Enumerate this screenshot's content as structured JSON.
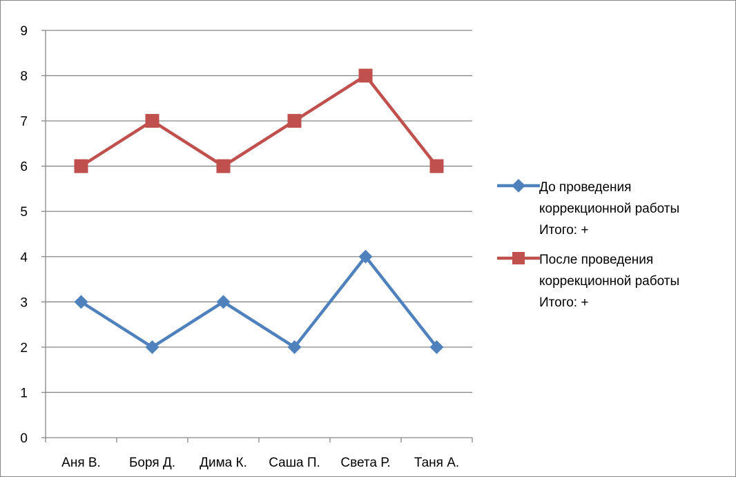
{
  "chart_data": {
    "type": "line",
    "categories": [
      "Аня В.",
      "Боря Д.",
      "Дима К.",
      "Саша П.",
      "Света Р.",
      "Таня А."
    ],
    "ylim": [
      0,
      9
    ],
    "yticks": [
      0,
      1,
      2,
      3,
      4,
      5,
      6,
      7,
      8,
      9
    ],
    "grid": true,
    "legend_position": "right",
    "series": [
      {
        "name": "До проведения коррекционной работы Итого: +",
        "legend_lines": [
          "До проведения",
          "коррекционной работы",
          "Итого: +"
        ],
        "color": "#4F81BD",
        "marker": "diamond",
        "values": [
          3,
          2,
          3,
          2,
          4,
          2
        ]
      },
      {
        "name": "После проведения коррекционной работы Итого: +",
        "legend_lines": [
          "После проведения",
          "коррекционной работы",
          "Итого: +"
        ],
        "color": "#C0504D",
        "marker": "square",
        "values": [
          6,
          7,
          6,
          7,
          8,
          6
        ]
      }
    ]
  }
}
